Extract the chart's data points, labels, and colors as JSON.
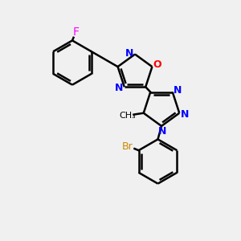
{
  "bg_color": "#f0f0f0",
  "bond_color": "#000000",
  "N_color": "#0000ff",
  "O_color": "#ff0000",
  "F_color": "#ff00ff",
  "Br_color": "#cc8800",
  "line_width": 1.8,
  "figsize": [
    3.0,
    3.0
  ],
  "dpi": 100,
  "xlim": [
    0,
    10
  ],
  "ylim": [
    0,
    10
  ]
}
